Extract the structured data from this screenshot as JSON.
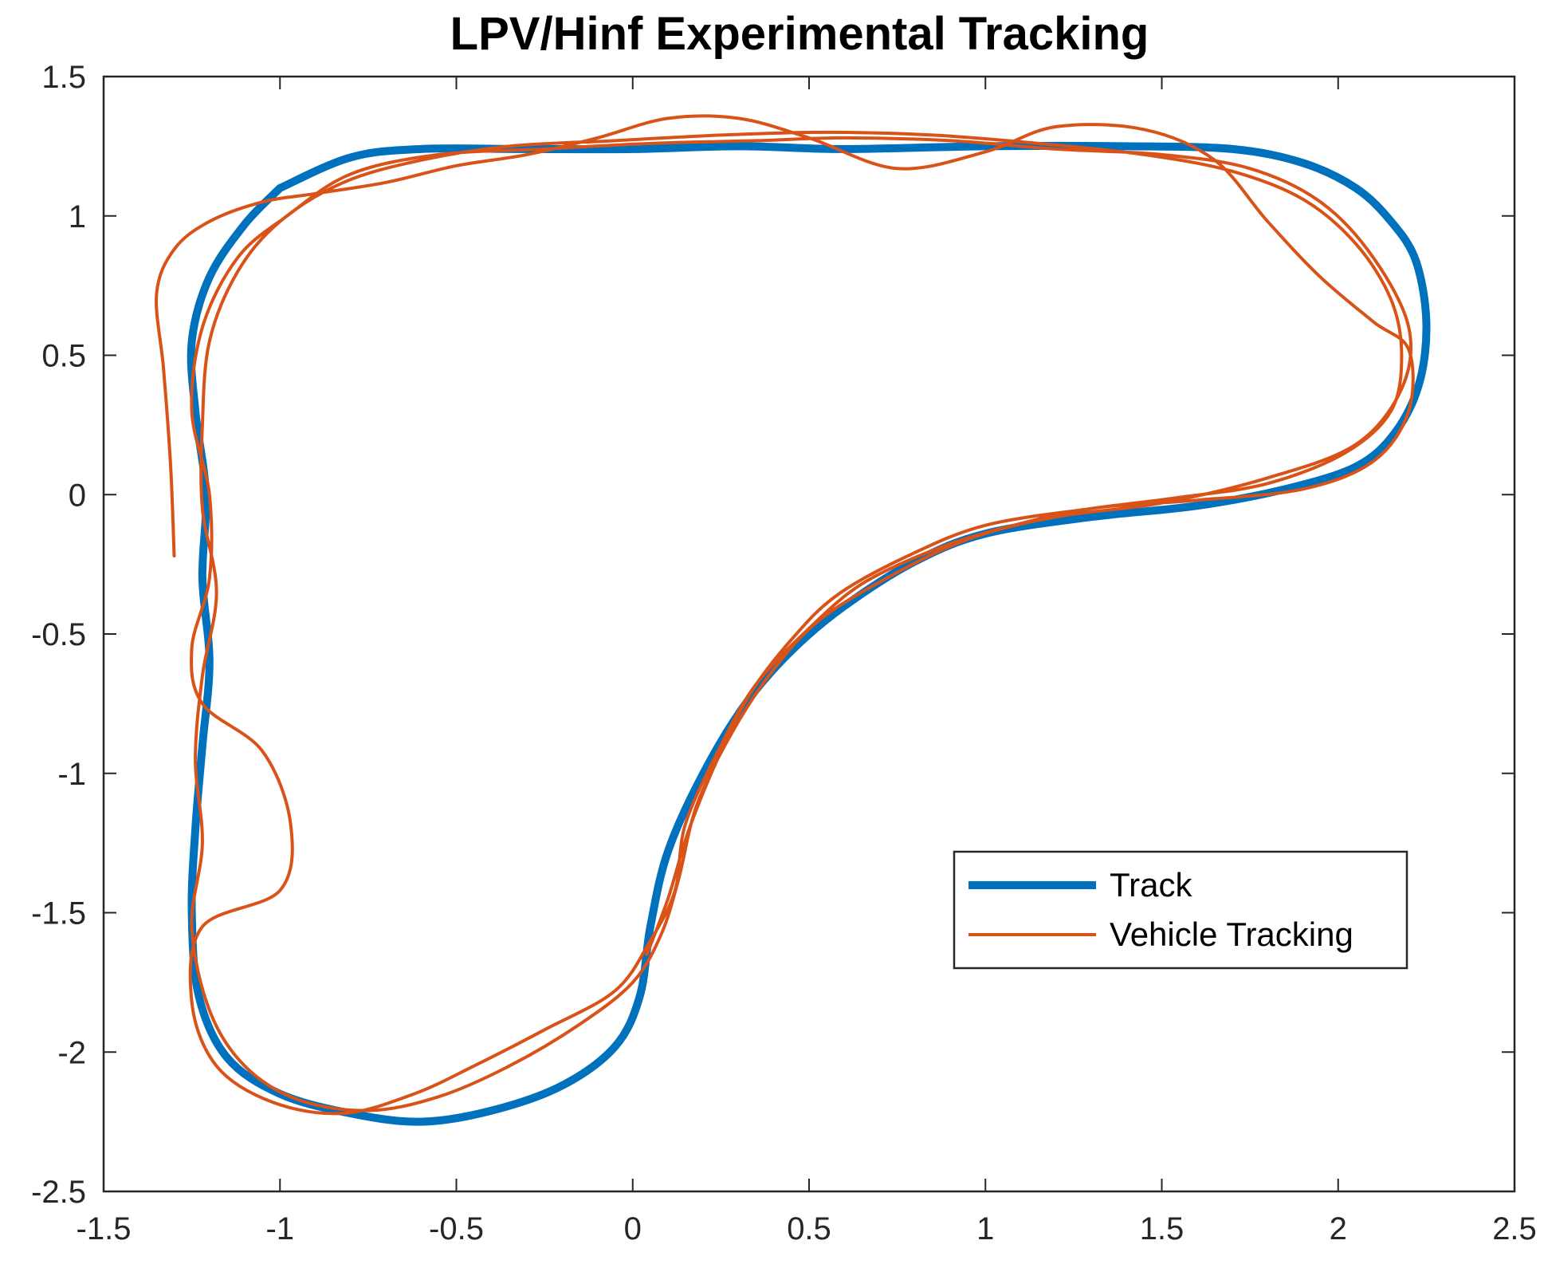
{
  "chart_data": {
    "type": "line",
    "title": "LPV/Hinf Experimental Tracking",
    "xlabel": "",
    "ylabel": "",
    "xlim": [
      -1.5,
      2.5
    ],
    "ylim": [
      -2.5,
      1.5
    ],
    "xticks": [
      -1.5,
      -1,
      -0.5,
      0,
      0.5,
      1,
      1.5,
      2,
      2.5
    ],
    "yticks": [
      -2.5,
      -2,
      -1.5,
      -1,
      -0.5,
      0,
      0.5,
      1,
      1.5
    ],
    "xtick_labels": [
      "-1.5",
      "-1",
      "-0.5",
      "0",
      "0.5",
      "1",
      "1.5",
      "2",
      "2.5"
    ],
    "ytick_labels": [
      "-2.5",
      "-2",
      "-1.5",
      "-1",
      "-0.5",
      "0",
      "0.5",
      "1",
      "1.5"
    ],
    "grid": false,
    "legend_position": "lower-right",
    "colors": {
      "track": "#0072BD",
      "vehicle": "#D95319",
      "axis": "#262626"
    },
    "series": [
      {
        "name": "Track",
        "points": [
          [
            -1.0,
            1.1
          ],
          [
            -0.8,
            1.21
          ],
          [
            -0.6,
            1.24
          ],
          [
            -0.3,
            1.24
          ],
          [
            0.0,
            1.24
          ],
          [
            0.3,
            1.25
          ],
          [
            0.6,
            1.24
          ],
          [
            1.0,
            1.25
          ],
          [
            1.4,
            1.25
          ],
          [
            1.7,
            1.24
          ],
          [
            1.9,
            1.19
          ],
          [
            2.05,
            1.1
          ],
          [
            2.15,
            0.98
          ],
          [
            2.22,
            0.84
          ],
          [
            2.25,
            0.62
          ],
          [
            2.23,
            0.4
          ],
          [
            2.16,
            0.22
          ],
          [
            2.05,
            0.1
          ],
          [
            1.85,
            0.02
          ],
          [
            1.6,
            -0.04
          ],
          [
            1.3,
            -0.08
          ],
          [
            1.0,
            -0.14
          ],
          [
            0.8,
            -0.24
          ],
          [
            0.6,
            -0.4
          ],
          [
            0.45,
            -0.56
          ],
          [
            0.32,
            -0.75
          ],
          [
            0.2,
            -1.0
          ],
          [
            0.1,
            -1.28
          ],
          [
            0.05,
            -1.55
          ],
          [
            0.02,
            -1.8
          ],
          [
            -0.05,
            -1.98
          ],
          [
            -0.2,
            -2.12
          ],
          [
            -0.4,
            -2.21
          ],
          [
            -0.6,
            -2.25
          ],
          [
            -0.8,
            -2.22
          ],
          [
            -1.0,
            -2.15
          ],
          [
            -1.15,
            -2.02
          ],
          [
            -1.23,
            -1.8
          ],
          [
            -1.25,
            -1.5
          ],
          [
            -1.24,
            -1.2
          ],
          [
            -1.22,
            -0.9
          ],
          [
            -1.2,
            -0.6
          ],
          [
            -1.22,
            -0.3
          ],
          [
            -1.21,
            0.0
          ],
          [
            -1.24,
            0.3
          ],
          [
            -1.25,
            0.55
          ],
          [
            -1.2,
            0.78
          ],
          [
            -1.1,
            0.97
          ],
          [
            -1.0,
            1.1
          ]
        ]
      },
      {
        "name": "Vehicle Tracking",
        "points": [
          [
            -1.3,
            -0.22
          ],
          [
            -1.31,
            0.1
          ],
          [
            -1.33,
            0.45
          ],
          [
            -1.35,
            0.72
          ],
          [
            -1.3,
            0.88
          ],
          [
            -1.2,
            0.98
          ],
          [
            -1.05,
            1.05
          ],
          [
            -0.9,
            1.08
          ],
          [
            -0.7,
            1.12
          ],
          [
            -0.5,
            1.18
          ],
          [
            -0.3,
            1.22
          ],
          [
            -0.1,
            1.28
          ],
          [
            0.1,
            1.35
          ],
          [
            0.3,
            1.35
          ],
          [
            0.5,
            1.28
          ],
          [
            0.75,
            1.17
          ],
          [
            1.0,
            1.23
          ],
          [
            1.2,
            1.32
          ],
          [
            1.45,
            1.31
          ],
          [
            1.65,
            1.2
          ],
          [
            1.8,
            0.98
          ],
          [
            1.95,
            0.78
          ],
          [
            2.1,
            0.62
          ],
          [
            2.2,
            0.52
          ],
          [
            2.2,
            0.3
          ],
          [
            2.1,
            0.12
          ],
          [
            1.9,
            0.02
          ],
          [
            1.6,
            -0.02
          ],
          [
            1.3,
            -0.05
          ],
          [
            1.05,
            -0.12
          ],
          [
            0.85,
            -0.2
          ],
          [
            0.65,
            -0.32
          ],
          [
            0.5,
            -0.48
          ],
          [
            0.35,
            -0.68
          ],
          [
            0.25,
            -0.9
          ],
          [
            0.15,
            -1.18
          ],
          [
            0.12,
            -1.42
          ],
          [
            0.05,
            -1.6
          ],
          [
            -0.05,
            -1.78
          ],
          [
            -0.25,
            -1.92
          ],
          [
            -0.45,
            -2.05
          ],
          [
            -0.62,
            -2.15
          ],
          [
            -0.82,
            -2.22
          ],
          [
            -1.02,
            -2.18
          ],
          [
            -1.18,
            -2.05
          ],
          [
            -1.25,
            -1.82
          ],
          [
            -1.22,
            -1.55
          ],
          [
            -1.0,
            -1.42
          ],
          [
            -0.97,
            -1.18
          ],
          [
            -1.05,
            -0.92
          ],
          [
            -1.22,
            -0.75
          ],
          [
            -1.25,
            -0.55
          ],
          [
            -1.2,
            -0.3
          ],
          [
            -1.2,
            0.0
          ],
          [
            -1.25,
            0.3
          ],
          [
            -1.22,
            0.6
          ],
          [
            -1.12,
            0.85
          ],
          [
            -0.98,
            1.0
          ],
          [
            -0.8,
            1.15
          ],
          [
            -0.55,
            1.22
          ],
          [
            -0.25,
            1.24
          ],
          [
            0.05,
            1.26
          ],
          [
            0.35,
            1.27
          ],
          [
            0.6,
            1.28
          ],
          [
            0.9,
            1.27
          ],
          [
            1.2,
            1.24
          ],
          [
            1.5,
            1.22
          ],
          [
            1.75,
            1.17
          ],
          [
            1.95,
            1.05
          ],
          [
            2.1,
            0.85
          ],
          [
            2.2,
            0.6
          ],
          [
            2.18,
            0.38
          ],
          [
            2.05,
            0.18
          ],
          [
            1.8,
            0.06
          ],
          [
            1.5,
            -0.03
          ],
          [
            1.2,
            -0.08
          ],
          [
            0.95,
            -0.16
          ],
          [
            0.72,
            -0.3
          ],
          [
            0.52,
            -0.46
          ],
          [
            0.38,
            -0.66
          ],
          [
            0.27,
            -0.88
          ],
          [
            0.18,
            -1.12
          ],
          [
            0.13,
            -1.38
          ],
          [
            0.08,
            -1.58
          ],
          [
            0.0,
            -1.75
          ],
          [
            -0.15,
            -1.9
          ],
          [
            -0.35,
            -2.05
          ],
          [
            -0.55,
            -2.16
          ],
          [
            -0.75,
            -2.21
          ],
          [
            -0.95,
            -2.17
          ],
          [
            -1.1,
            -2.05
          ],
          [
            -1.2,
            -1.85
          ],
          [
            -1.25,
            -1.55
          ],
          [
            -1.22,
            -1.25
          ],
          [
            -1.24,
            -0.95
          ],
          [
            -1.22,
            -0.65
          ],
          [
            -1.18,
            -0.35
          ],
          [
            -1.22,
            -0.05
          ],
          [
            -1.22,
            0.25
          ],
          [
            -1.2,
            0.55
          ],
          [
            -1.12,
            0.8
          ],
          [
            -1.0,
            0.98
          ],
          [
            -0.82,
            1.12
          ],
          [
            -0.6,
            1.2
          ],
          [
            -0.35,
            1.25
          ],
          [
            -0.05,
            1.27
          ],
          [
            0.25,
            1.29
          ],
          [
            0.55,
            1.3
          ],
          [
            0.85,
            1.29
          ],
          [
            1.15,
            1.26
          ],
          [
            1.45,
            1.22
          ],
          [
            1.7,
            1.16
          ],
          [
            1.9,
            1.06
          ],
          [
            2.05,
            0.9
          ],
          [
            2.15,
            0.7
          ],
          [
            2.18,
            0.5
          ],
          [
            2.15,
            0.3
          ],
          [
            2.02,
            0.15
          ],
          [
            1.8,
            0.04
          ],
          [
            1.55,
            -0.01
          ],
          [
            1.3,
            -0.05
          ],
          [
            1.0,
            -0.11
          ],
          [
            0.78,
            -0.22
          ],
          [
            0.58,
            -0.36
          ],
          [
            0.45,
            -0.52
          ],
          [
            0.33,
            -0.72
          ],
          [
            0.24,
            -0.95
          ],
          [
            0.16,
            -1.2
          ],
          [
            0.1,
            -1.45
          ],
          [
            0.04,
            -1.65
          ]
        ]
      }
    ]
  },
  "legend": {
    "track_label": "Track",
    "vehicle_label": "Vehicle Tracking"
  }
}
